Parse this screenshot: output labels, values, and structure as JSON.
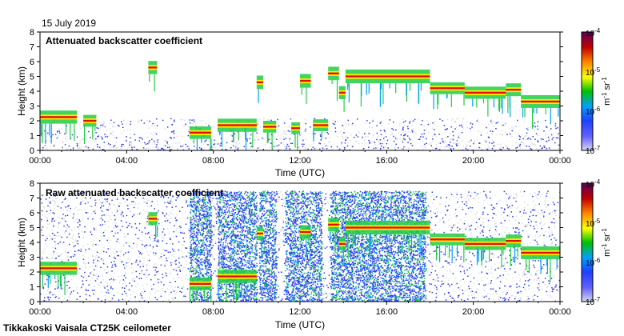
{
  "header": {
    "date": "15 July 2019"
  },
  "footer": {
    "instrument": "Tikkakoski Vaisala CT25K ceilometer"
  },
  "colorbar": {
    "tick_labels": [
      "10-4",
      "10-5",
      "10-6",
      "10-7"
    ],
    "unit_label": "m-1 sr-1",
    "colors": [
      "#5a005a",
      "#c00000",
      "#ff8000",
      "#ffff00",
      "#00c000",
      "#00a0ff",
      "#2040ff",
      "#6060ff",
      "#d8d8f0"
    ]
  },
  "colors": {
    "background_noise": "#dcdcdc",
    "low": "#2a3cf0",
    "mid": "#22cc44",
    "high": "#ffee00",
    "peak": "#e01010"
  },
  "chart_data": [
    {
      "type": "heatmap",
      "title": "Attenuated backscatter coefficient",
      "xlabel": "Time (UTC)",
      "ylabel": "Height (km)",
      "x_ticks": [
        "00:00",
        "04:00",
        "08:00",
        "12:00",
        "16:00",
        "20:00",
        "00:00"
      ],
      "y_ticks": [
        "0",
        "1",
        "2",
        "3",
        "4",
        "5",
        "6",
        "7",
        "8"
      ],
      "xlim": [
        0,
        24
      ],
      "ylim": [
        0,
        8
      ],
      "color_scale": "log",
      "clim": [
        1e-07,
        0.0001
      ],
      "layers": [
        {
          "t": [
            0,
            1.7
          ],
          "h": 2.25,
          "level": 0.8
        },
        {
          "t": [
            2.0,
            2.6
          ],
          "h": 2.0,
          "level": 0.6
        },
        {
          "t": [
            5.0,
            5.4
          ],
          "h": 5.6,
          "level": 0.8
        },
        {
          "t": [
            6.9,
            7.9
          ],
          "h": 1.2,
          "level": 0.7
        },
        {
          "t": [
            8.2,
            10.0
          ],
          "h": 1.7,
          "level": 0.8
        },
        {
          "t": [
            10.0,
            10.3
          ],
          "h": 4.6,
          "level": 0.85
        },
        {
          "t": [
            10.3,
            10.9
          ],
          "h": 1.6,
          "level": 0.6
        },
        {
          "t": [
            11.6,
            12.0
          ],
          "h": 1.5,
          "level": 0.6
        },
        {
          "t": [
            12.0,
            12.5
          ],
          "h": 4.7,
          "level": 0.9
        },
        {
          "t": [
            12.6,
            13.3
          ],
          "h": 1.7,
          "level": 0.6
        },
        {
          "t": [
            13.3,
            13.8
          ],
          "h": 5.2,
          "level": 0.85
        },
        {
          "t": [
            13.8,
            14.1
          ],
          "h": 3.9,
          "level": 0.8
        },
        {
          "t": [
            14.1,
            18.0
          ],
          "h": 5.0,
          "level": 0.9
        },
        {
          "t": [
            18.0,
            19.6
          ],
          "h": 4.2,
          "level": 0.6
        },
        {
          "t": [
            19.6,
            21.5
          ],
          "h": 3.9,
          "level": 0.65
        },
        {
          "t": [
            21.5,
            22.2
          ],
          "h": 4.1,
          "level": 0.75
        },
        {
          "t": [
            22.2,
            24.0
          ],
          "h": 3.3,
          "level": 0.75
        }
      ]
    },
    {
      "type": "heatmap",
      "title": "Raw attenuated backscatter coefficient",
      "xlabel": "Time (UTC)",
      "ylabel": "Height (km)",
      "x_ticks": [
        "00:00",
        "04:00",
        "08:00",
        "12:00",
        "16:00",
        "20:00",
        "00:00"
      ],
      "y_ticks": [
        "0",
        "1",
        "2",
        "3",
        "4",
        "5",
        "6",
        "7",
        "8"
      ],
      "xlim": [
        0,
        24
      ],
      "ylim": [
        0,
        8
      ],
      "color_scale": "log",
      "clim": [
        1e-07,
        0.0001
      ],
      "noise_columns": [
        [
          6.9,
          7.9
        ],
        [
          8.2,
          10.0
        ],
        [
          10.1,
          10.9
        ],
        [
          11.3,
          13.0
        ],
        [
          13.4,
          17.8
        ]
      ],
      "layers": [
        {
          "t": [
            0,
            1.7
          ],
          "h": 2.25,
          "level": 0.8
        },
        {
          "t": [
            5.0,
            5.4
          ],
          "h": 5.6,
          "level": 0.8
        },
        {
          "t": [
            6.9,
            7.9
          ],
          "h": 1.2,
          "level": 0.7
        },
        {
          "t": [
            8.2,
            10.0
          ],
          "h": 1.7,
          "level": 0.8
        },
        {
          "t": [
            10.0,
            10.3
          ],
          "h": 4.6,
          "level": 0.85
        },
        {
          "t": [
            12.0,
            12.5
          ],
          "h": 4.7,
          "level": 0.9
        },
        {
          "t": [
            13.3,
            13.8
          ],
          "h": 5.2,
          "level": 0.85
        },
        {
          "t": [
            13.8,
            14.1
          ],
          "h": 3.9,
          "level": 0.8
        },
        {
          "t": [
            14.1,
            18.0
          ],
          "h": 5.0,
          "level": 0.9
        },
        {
          "t": [
            18.0,
            19.6
          ],
          "h": 4.2,
          "level": 0.6
        },
        {
          "t": [
            19.6,
            21.5
          ],
          "h": 3.9,
          "level": 0.65
        },
        {
          "t": [
            21.5,
            22.2
          ],
          "h": 4.1,
          "level": 0.75
        },
        {
          "t": [
            22.2,
            24.0
          ],
          "h": 3.3,
          "level": 0.75
        }
      ]
    }
  ]
}
